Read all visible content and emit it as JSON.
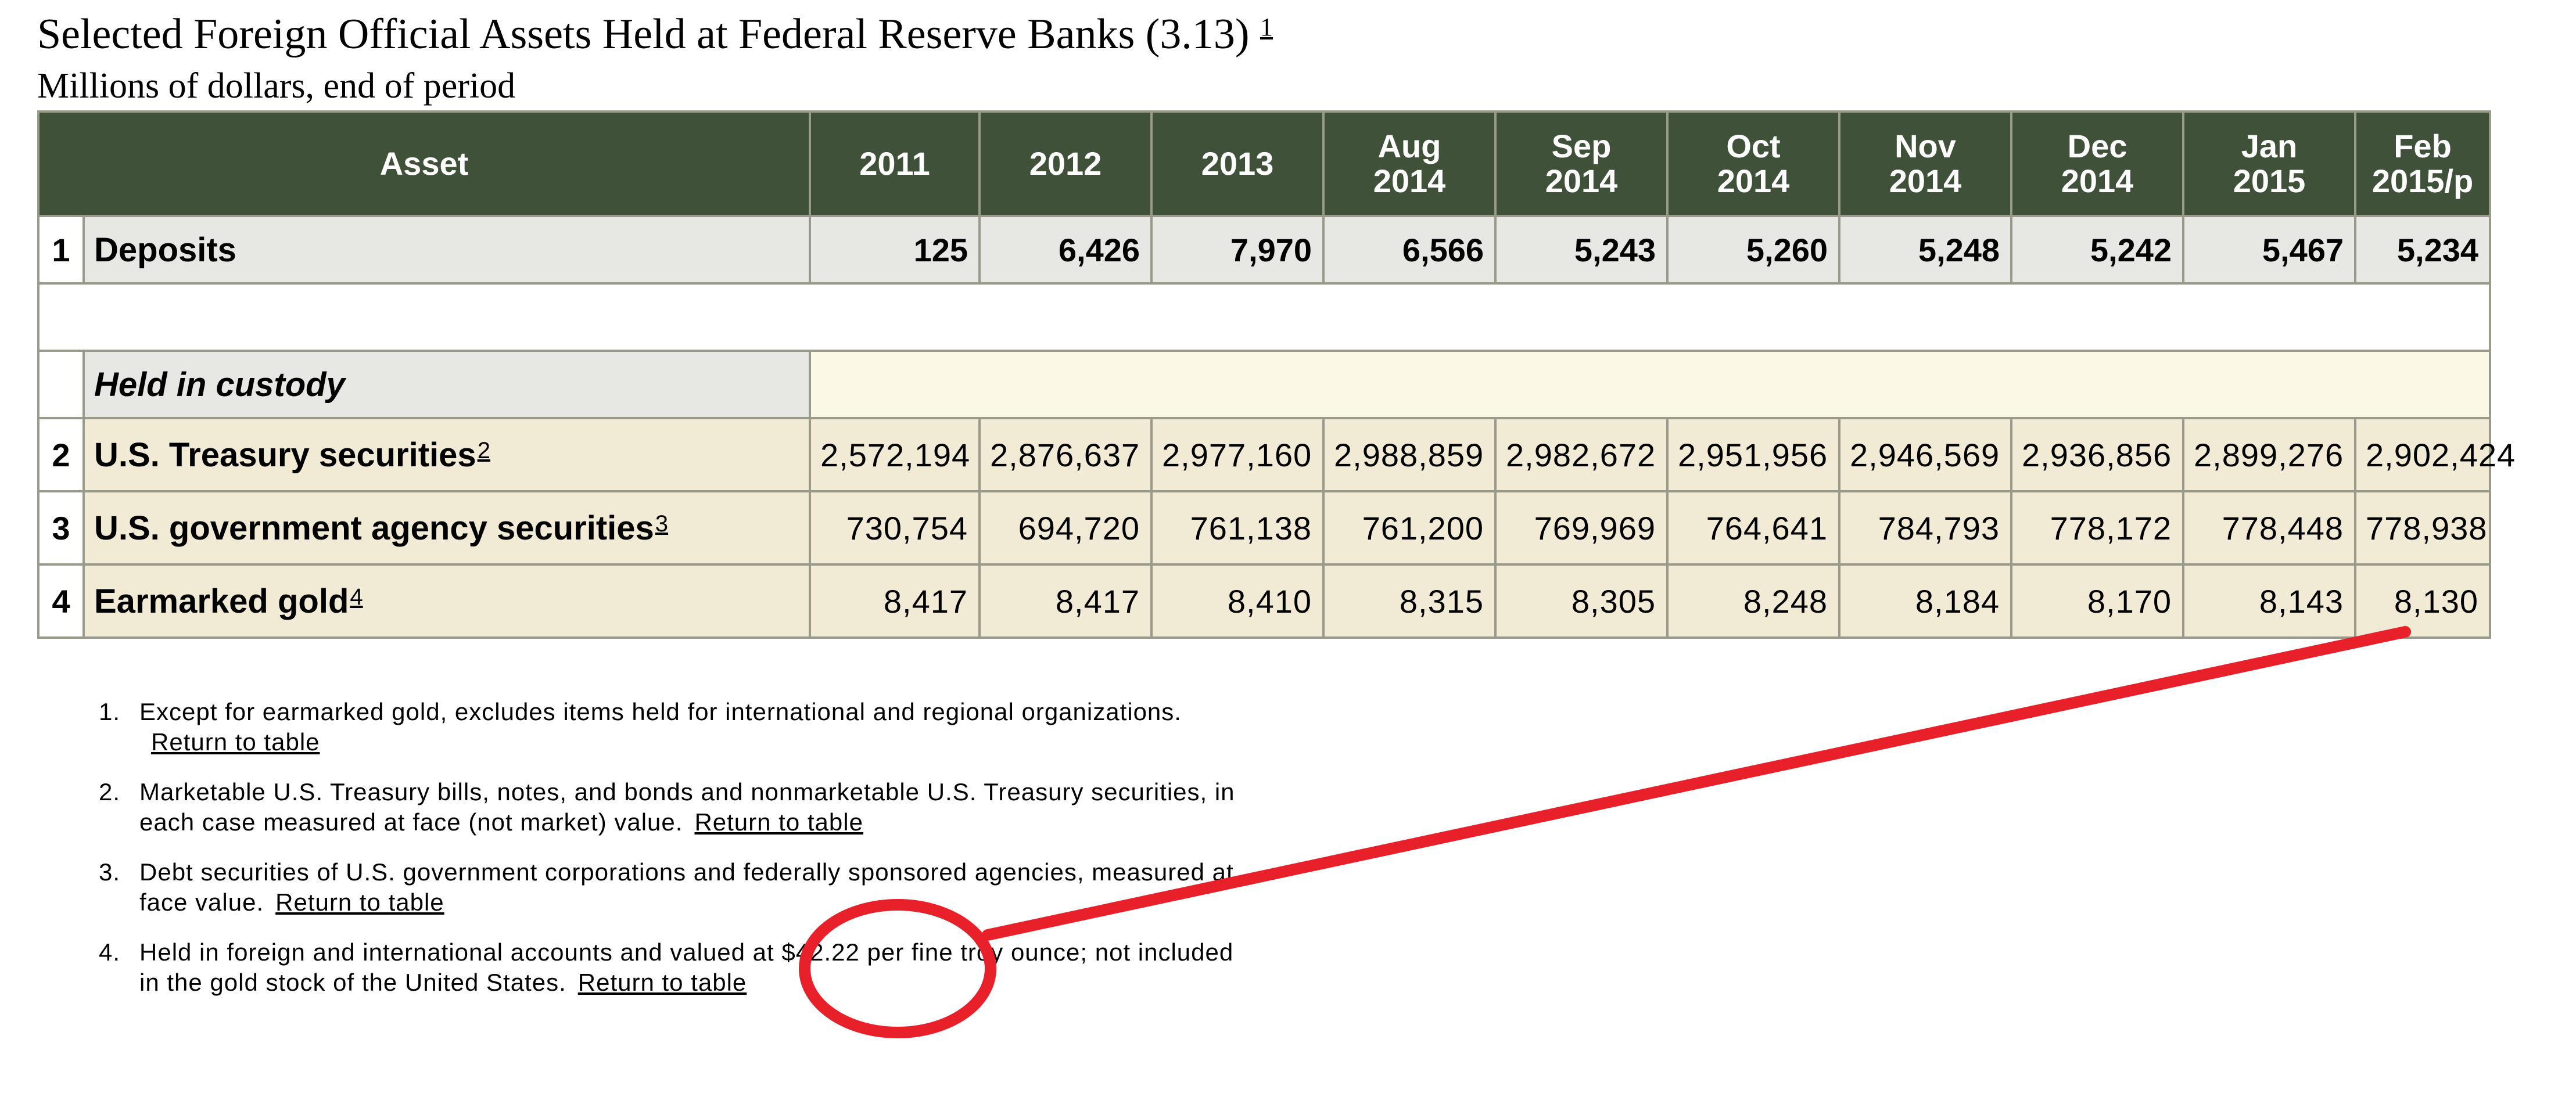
{
  "title": "Selected Foreign Official Assets Held at Federal Reserve Banks (3.13)",
  "title_note": "1",
  "subtitle": "Millions of dollars, end of period",
  "table": {
    "header_asset": "Asset",
    "columns": [
      {
        "l1": "2011",
        "l2": ""
      },
      {
        "l1": "2012",
        "l2": ""
      },
      {
        "l1": "2013",
        "l2": ""
      },
      {
        "l1": "Aug",
        "l2": "2014"
      },
      {
        "l1": "Sep",
        "l2": "2014"
      },
      {
        "l1": "Oct",
        "l2": "2014"
      },
      {
        "l1": "Nov",
        "l2": "2014"
      },
      {
        "l1": "Dec",
        "l2": "2014"
      },
      {
        "l1": "Jan",
        "l2": "2015"
      },
      {
        "l1": "Feb",
        "l2": "2015/p"
      }
    ],
    "deposits": {
      "num": "1",
      "label": "Deposits",
      "values": [
        "125",
        "6,426",
        "7,970",
        "6,566",
        "5,243",
        "5,260",
        "5,248",
        "5,242",
        "5,467",
        "5,234"
      ]
    },
    "custody_label": "Held in custody",
    "rows": [
      {
        "num": "2",
        "label": "U.S. Treasury securities",
        "note": "2",
        "values": [
          "2,572,194",
          "2,876,637",
          "2,977,160",
          "2,988,859",
          "2,982,672",
          "2,951,956",
          "2,946,569",
          "2,936,856",
          "2,899,276",
          "2,902,424"
        ]
      },
      {
        "num": "3",
        "label": "U.S. government agency securities",
        "note": "3",
        "values": [
          "730,754",
          "694,720",
          "761,138",
          "761,200",
          "769,969",
          "764,641",
          "784,793",
          "778,172",
          "778,448",
          "778,938"
        ]
      },
      {
        "num": "4",
        "label": "Earmarked gold",
        "note": "4",
        "values": [
          "8,417",
          "8,417",
          "8,410",
          "8,315",
          "8,305",
          "8,248",
          "8,184",
          "8,170",
          "8,143",
          "8,130"
        ]
      }
    ]
  },
  "footnotes": [
    {
      "num": "1.",
      "line1": "Except for earmarked gold, excludes items held for international and regional organizations.",
      "line2": "",
      "link": "Return to table"
    },
    {
      "num": "2.",
      "line1": "Marketable U.S. Treasury bills, notes, and bonds and nonmarketable U.S. Treasury securities, in",
      "line2": "each case measured at face (not market) value.",
      "link": "Return to table"
    },
    {
      "num": "3.",
      "line1": "Debt securities of U.S. government corporations and federally sponsored agencies, measured at",
      "line2": "face value.",
      "link": "Return to table"
    },
    {
      "num": "4.",
      "line1": "Held in foreign and international accounts and valued at $42.22 per fine troy ounce; not included",
      "line2": "in the gold stock of the United States.",
      "link": "Return to table"
    }
  ],
  "annotation_color": "#e8202a"
}
